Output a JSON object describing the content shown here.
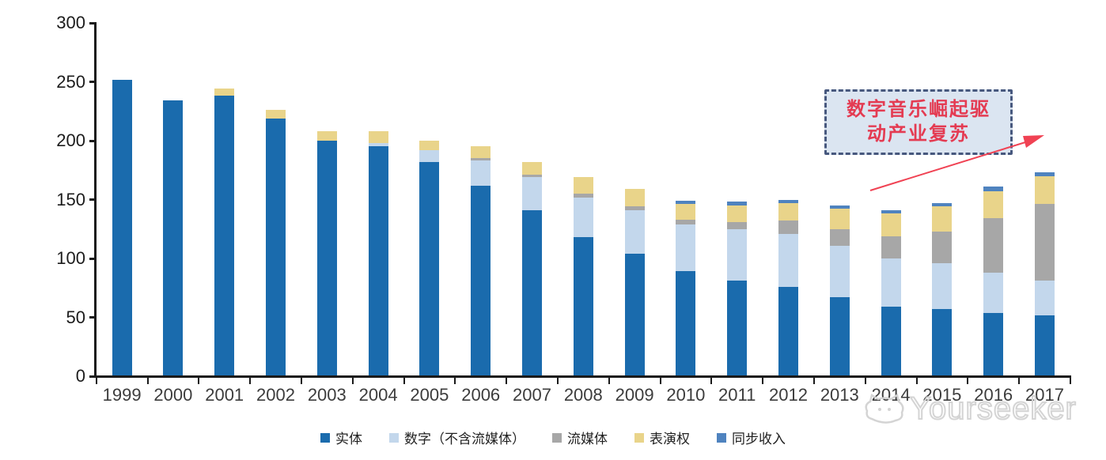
{
  "chart_data": {
    "type": "bar",
    "stacked": true,
    "title": "",
    "xlabel": "",
    "ylabel": "",
    "ylim": [
      0,
      300
    ],
    "yticks": [
      0,
      50,
      100,
      150,
      200,
      250,
      300
    ],
    "grid": false,
    "legend_position": "bottom",
    "categories": [
      "1999",
      "2000",
      "2001",
      "2002",
      "2003",
      "2004",
      "2005",
      "2006",
      "2007",
      "2008",
      "2009",
      "2010",
      "2011",
      "2012",
      "2013",
      "2014",
      "2015",
      "2016",
      "2017"
    ],
    "series": [
      {
        "name": "实体",
        "color": "#1a6bad",
        "values": [
          252,
          234,
          238,
          219,
          200,
          195,
          182,
          162,
          141,
          118,
          104,
          89,
          81,
          76,
          67,
          59,
          57,
          54,
          52
        ]
      },
      {
        "name": "数字（不含流媒体）",
        "color": "#c3d7ec",
        "values": [
          0,
          0,
          0,
          0,
          0,
          3,
          10,
          21,
          28,
          34,
          37,
          40,
          44,
          45,
          44,
          41,
          39,
          34,
          29
        ]
      },
      {
        "name": "流媒体",
        "color": "#a7a7a7",
        "values": [
          0,
          0,
          0,
          0,
          0,
          0,
          0,
          2,
          2,
          3,
          3,
          4,
          6,
          11,
          14,
          19,
          27,
          46,
          65
        ]
      },
      {
        "name": "表演权",
        "color": "#e9d48a",
        "values": [
          0,
          0,
          6,
          7,
          8,
          10,
          8,
          10,
          11,
          14,
          15,
          13,
          14,
          15,
          17,
          19,
          21,
          23,
          24
        ]
      },
      {
        "name": "同步收入",
        "color": "#4f83bf",
        "values": [
          0,
          0,
          0,
          0,
          0,
          0,
          0,
          0,
          0,
          0,
          0,
          3,
          3,
          3,
          3,
          3,
          3,
          4,
          3
        ]
      }
    ]
  },
  "annotation": {
    "line1": "数字音乐崛起驱",
    "line2": "动产业复苏",
    "box_fill": "#dbe5f1",
    "border_color": "#47587e",
    "text_color": "#e43b52",
    "arrow_color": "#f04253"
  },
  "watermark": {
    "text": "Yourseeker",
    "logo": "cat-face-icon",
    "color": "#d4d4d4"
  },
  "axis_colors": {
    "line": "#1a1a1a",
    "y_label": "#1c1c1c",
    "x_label": "#3c3c3c"
  }
}
